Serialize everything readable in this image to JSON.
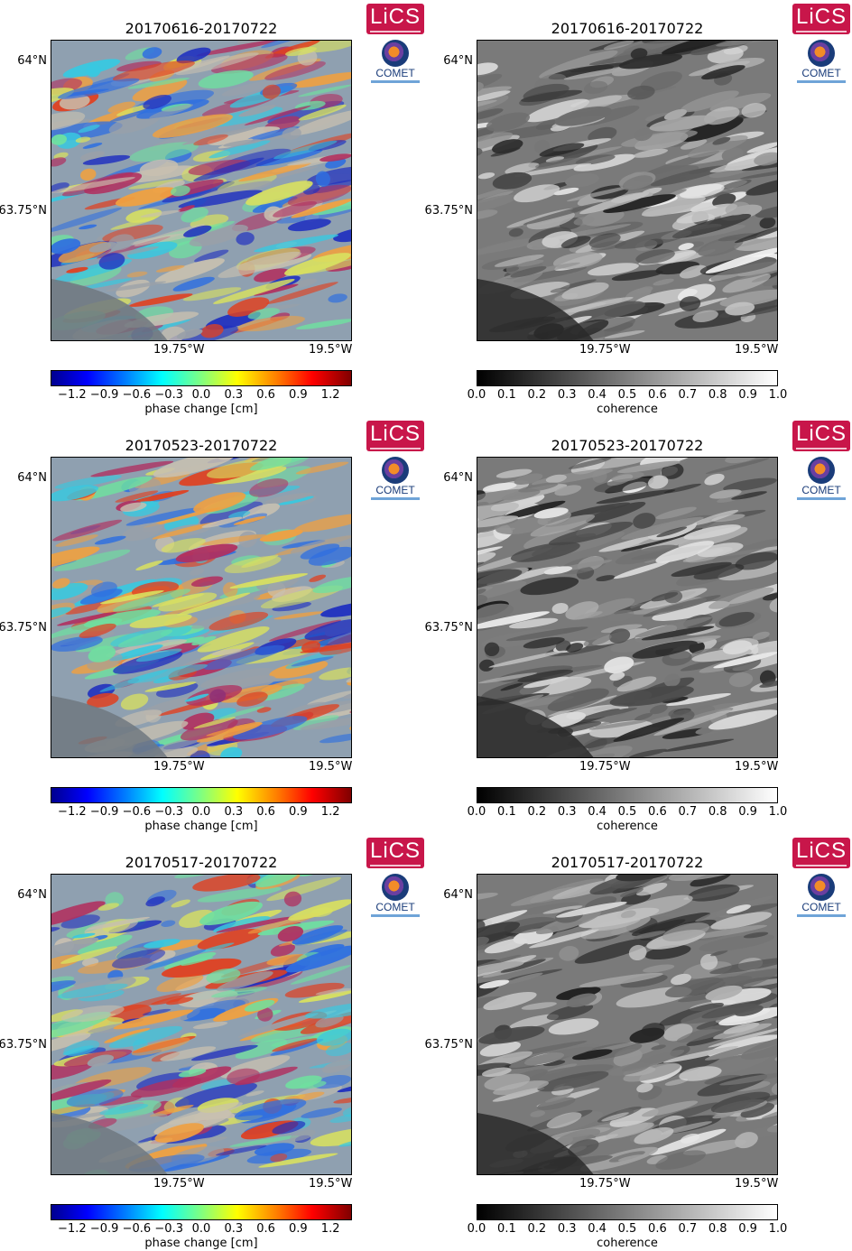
{
  "panels": [
    {
      "title": "20170616-20170722",
      "kind": "phase",
      "colorbar_label": "phase change [cm]"
    },
    {
      "title": "20170616-20170722",
      "kind": "coherence",
      "colorbar_label": "coherence"
    },
    {
      "title": "20170523-20170722",
      "kind": "phase",
      "colorbar_label": "phase change [cm]"
    },
    {
      "title": "20170523-20170722",
      "kind": "coherence",
      "colorbar_label": "coherence"
    },
    {
      "title": "20170517-20170722",
      "kind": "phase",
      "colorbar_label": "phase change [cm]"
    },
    {
      "title": "20170517-20170722",
      "kind": "coherence",
      "colorbar_label": "coherence"
    }
  ],
  "axes": {
    "y_top": "64°N",
    "y_mid": "63.75°N",
    "x_left": "19.75°W",
    "x_right": "19.5°W"
  },
  "colorbars": {
    "phase_ticks": [
      "−1.2",
      "−0.9",
      "−0.6",
      "−0.3",
      "0.0",
      "0.3",
      "0.6",
      "0.9",
      "1.2"
    ],
    "coherence_ticks": [
      "0.0",
      "0.1",
      "0.2",
      "0.3",
      "0.4",
      "0.5",
      "0.6",
      "0.7",
      "0.8",
      "0.9",
      "1.0"
    ]
  },
  "logos": {
    "lics": "LiCS",
    "comet": "COMET"
  },
  "colors": {
    "lics_red": "#c8164a",
    "comet_blue": "#1a3c7a"
  }
}
